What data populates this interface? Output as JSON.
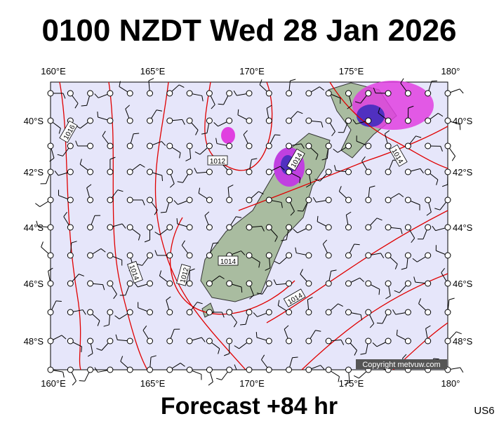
{
  "header": {
    "title": "0100 NZDT Wed 28 Jan 2026"
  },
  "map": {
    "lon_labels": [
      "160°E",
      "165°E",
      "170°E",
      "175°E",
      "180°"
    ],
    "lat_labels": [
      "40°S",
      "42°S",
      "44°S",
      "46°S",
      "48°S"
    ],
    "contour_labels": [
      "1016",
      "1012",
      "1014",
      "1014",
      "1014",
      "1012",
      "1014",
      "1014"
    ],
    "copyright": "Copyright metvuw.com"
  },
  "footer": {
    "forecast": "Forecast +84 hr",
    "code": "US6"
  }
}
